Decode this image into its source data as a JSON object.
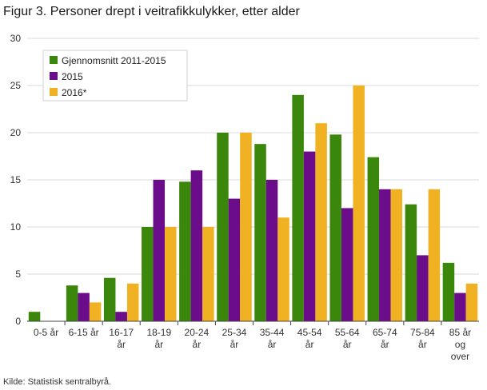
{
  "title": "Figur 3. Personer drept i veitrafikkulykker, etter alder",
  "source": "Kilde: Statistisk sentralbyrå.",
  "chart_data": {
    "type": "bar",
    "title": "Figur 3. Personer drept i veitrafikkulykker, etter alder",
    "xlabel": "",
    "ylabel": "",
    "ylim": [
      0,
      30
    ],
    "yticks": [
      0,
      5,
      10,
      15,
      20,
      25,
      30
    ],
    "grid": true,
    "legend_position": "top-left",
    "categories": [
      [
        "0-5 år"
      ],
      [
        "6-15 år"
      ],
      [
        "16-17",
        "år"
      ],
      [
        "18-19",
        "år"
      ],
      [
        "20-24",
        "år"
      ],
      [
        "25-34",
        "år"
      ],
      [
        "35-44",
        "år"
      ],
      [
        "45-54",
        "år"
      ],
      [
        "55-64",
        "år"
      ],
      [
        "65-74",
        "år"
      ],
      [
        "75-84",
        "år"
      ],
      [
        "85 år",
        "og",
        "over"
      ]
    ],
    "series": [
      {
        "name": "Gjennomsnitt 2011-2015",
        "color": "#3a870b",
        "values": [
          1.0,
          3.8,
          4.6,
          10.0,
          14.8,
          20.0,
          18.8,
          24.0,
          19.8,
          17.4,
          12.4,
          6.2
        ]
      },
      {
        "name": "2015",
        "color": "#6b0c8a",
        "values": [
          0,
          3.0,
          1.0,
          15.0,
          16.0,
          13.0,
          15.0,
          18.0,
          12.0,
          14.0,
          7.0,
          3.0
        ]
      },
      {
        "name": "2016*",
        "color": "#f0b122",
        "values": [
          0,
          2.0,
          4.0,
          10.0,
          10.0,
          20.0,
          11.0,
          21.0,
          25.0,
          14.0,
          14.0,
          4.0
        ]
      }
    ]
  }
}
